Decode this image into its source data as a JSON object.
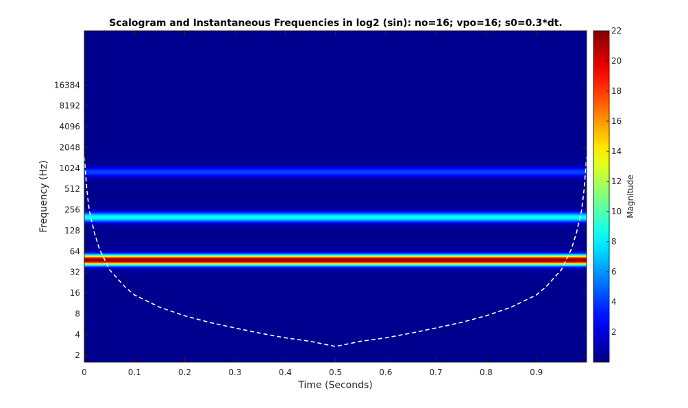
{
  "chart_data": {
    "type": "heatmap",
    "title": "Scalogram and Instantaneous Frequencies in log2 (sin): no=16; vpo=16; s0=0.3*dt.",
    "xlabel": "Time (Seconds)",
    "ylabel": "Frequency (Hz)",
    "xlim": [
      0,
      1
    ],
    "y_scale": "log2",
    "ylim": [
      1.6,
      100000
    ],
    "x_ticks": [
      0,
      0.1,
      0.2,
      0.3,
      0.4,
      0.5,
      0.6,
      0.7,
      0.8,
      0.9
    ],
    "x_tick_labels": [
      "0",
      "0.1",
      "0.2",
      "0.3",
      "0.4",
      "0.5",
      "0.6",
      "0.7",
      "0.8",
      "0.9"
    ],
    "y_ticks": [
      2,
      4,
      8,
      16,
      32,
      64,
      128,
      256,
      512,
      1024,
      2048,
      4096,
      8192,
      16384
    ],
    "y_tick_labels": [
      "2",
      "4",
      "8",
      "16",
      "32",
      "64",
      "128",
      "256",
      "512",
      "1024",
      "2048",
      "4096",
      "8192",
      "16384"
    ],
    "colormap": "jet",
    "background_color": "#00008f",
    "colorbar": {
      "label": "Magnitude",
      "clim": [
        0,
        22
      ],
      "ticks": [
        2,
        4,
        6,
        8,
        10,
        12,
        14,
        16,
        18,
        20,
        22
      ],
      "tick_labels": [
        "2",
        "4",
        "6",
        "8",
        "10",
        "12",
        "14",
        "16",
        "18",
        "20",
        "22"
      ]
    },
    "bands": [
      {
        "center_frequency": 48,
        "peak_magnitude": 22,
        "width_octaves": 0.55
      },
      {
        "center_frequency": 200,
        "peak_magnitude": 8.5,
        "width_octaves": 0.55
      },
      {
        "center_frequency": 900,
        "peak_magnitude": 4.2,
        "width_octaves": 0.55
      }
    ],
    "cone_of_influence": {
      "style": "white dashed",
      "points": [
        {
          "x": 0.0,
          "y": 1500
        },
        {
          "x": 0.005,
          "y": 500
        },
        {
          "x": 0.01,
          "y": 250
        },
        {
          "x": 0.02,
          "y": 120
        },
        {
          "x": 0.03,
          "y": 70
        },
        {
          "x": 0.05,
          "y": 35
        },
        {
          "x": 0.08,
          "y": 20
        },
        {
          "x": 0.1,
          "y": 15
        },
        {
          "x": 0.15,
          "y": 10
        },
        {
          "x": 0.2,
          "y": 7.5
        },
        {
          "x": 0.25,
          "y": 6
        },
        {
          "x": 0.3,
          "y": 5
        },
        {
          "x": 0.35,
          "y": 4.2
        },
        {
          "x": 0.4,
          "y": 3.6
        },
        {
          "x": 0.45,
          "y": 3.2
        },
        {
          "x": 0.5,
          "y": 2.7
        },
        {
          "x": 0.55,
          "y": 3.2
        },
        {
          "x": 0.6,
          "y": 3.6
        },
        {
          "x": 0.65,
          "y": 4.2
        },
        {
          "x": 0.7,
          "y": 5
        },
        {
          "x": 0.75,
          "y": 6
        },
        {
          "x": 0.8,
          "y": 7.5
        },
        {
          "x": 0.85,
          "y": 10
        },
        {
          "x": 0.9,
          "y": 15
        },
        {
          "x": 0.92,
          "y": 20
        },
        {
          "x": 0.95,
          "y": 35
        },
        {
          "x": 0.97,
          "y": 70
        },
        {
          "x": 0.98,
          "y": 120
        },
        {
          "x": 0.99,
          "y": 250
        },
        {
          "x": 0.995,
          "y": 500
        },
        {
          "x": 1.0,
          "y": 1500
        }
      ]
    }
  }
}
